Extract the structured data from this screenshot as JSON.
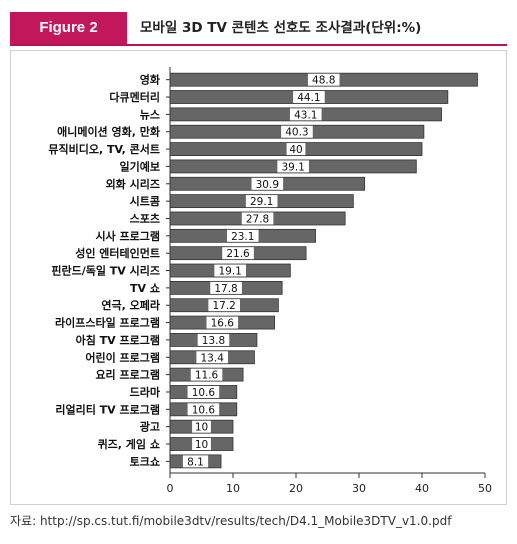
{
  "header": {
    "figure_label": "Figure 2",
    "title": "모바일 3D TV 콘텐츠 선호도 조사결과(단위:%)"
  },
  "source": "자료:  http://sp.cs.tut.fi/mobile3dtv/results/tech/D4.1_Mobile3DTV_v1.0.pdf",
  "colors": {
    "bar": "#666666",
    "accent": "#c2185b"
  },
  "chart_data": {
    "type": "bar",
    "orientation": "horizontal",
    "title": "모바일 3D TV 콘텐츠 선호도 조사결과(단위:%)",
    "categories": [
      "영화",
      "다큐멘터리",
      "뉴스",
      "애니메이션 영화, 만화",
      "뮤직비디오, TV, 콘서트",
      "일기예보",
      "외화 시리즈",
      "시트콤",
      "스포츠",
      "시사 프로그램",
      "성인 엔터테인먼트",
      "핀란드/독일 TV 시리즈",
      "TV 쇼",
      "연극, 오페라",
      "라이프스타일 프로그램",
      "아침 TV 프로그램",
      "어린이 프로그램",
      "요리 프로그램",
      "드라마",
      "리얼리티 TV 프로그램",
      "광고",
      "퀴즈, 게임 쇼",
      "토크쇼"
    ],
    "values": [
      48.8,
      44.1,
      43.1,
      40.3,
      40,
      39.1,
      30.9,
      29.1,
      27.8,
      23.1,
      21.6,
      19.1,
      17.8,
      17.2,
      16.6,
      13.8,
      13.4,
      11.6,
      10.6,
      10.6,
      10,
      10,
      8.1
    ],
    "value_labels": [
      "48.8",
      "44.1",
      "43.1",
      "40.3",
      "40",
      "39.1",
      "30.9",
      "29.1",
      "27.8",
      "23.1",
      "21.6",
      "19.1",
      "17.8",
      "17.2",
      "16.6",
      "13.8",
      "13.4",
      "11.6",
      "10.6",
      "10.6",
      "10",
      "10",
      "8.1"
    ],
    "xlim": [
      0,
      50
    ],
    "xticks": [
      0,
      10,
      20,
      30,
      40,
      50
    ],
    "grid": false,
    "legend": "none"
  }
}
